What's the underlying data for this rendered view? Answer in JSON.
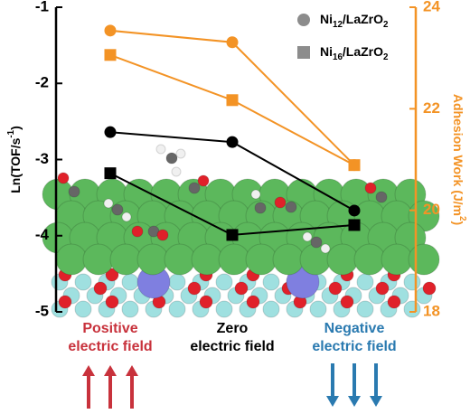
{
  "chart_data": {
    "type": "line",
    "y_label": "Ln(TOF/s-1)",
    "y2_label": "Adhesion Work (J/m2)",
    "categories": [
      [
        "Positive",
        "electric field"
      ],
      [
        "Zero",
        "electric field"
      ],
      [
        "Negative",
        "electric field"
      ]
    ],
    "category_colors": [
      "#c8323c",
      "#000000",
      "#2a7ab0"
    ],
    "ylim": [
      -5,
      -1
    ],
    "yticks": [
      -5,
      -4,
      -3,
      -2,
      -1
    ],
    "y2lim": [
      18,
      24
    ],
    "y2ticks": [
      18,
      20,
      22,
      24
    ],
    "y2_color": "#f39325",
    "series": [
      {
        "marker": "circle",
        "color": "#000000",
        "values": [
          -2.64,
          -2.77,
          -3.67
        ]
      },
      {
        "marker": "square",
        "color": "#000000",
        "values": [
          -3.18,
          -3.99,
          -3.86
        ]
      },
      {
        "marker": "circle",
        "color": "#f39325",
        "axis": "y2",
        "values": [
          23.54,
          23.31,
          20.89
        ]
      },
      {
        "marker": "square",
        "color": "#f39325",
        "axis": "y2",
        "values": [
          23.06,
          22.17,
          20.89
        ]
      }
    ],
    "legend": [
      {
        "label": "Ni12/LaZrO2",
        "marker": "circle",
        "color": "#8c8c8c"
      },
      {
        "label": "Ni16/LaZrO2",
        "marker": "square",
        "color": "#8c8c8c"
      }
    ]
  }
}
